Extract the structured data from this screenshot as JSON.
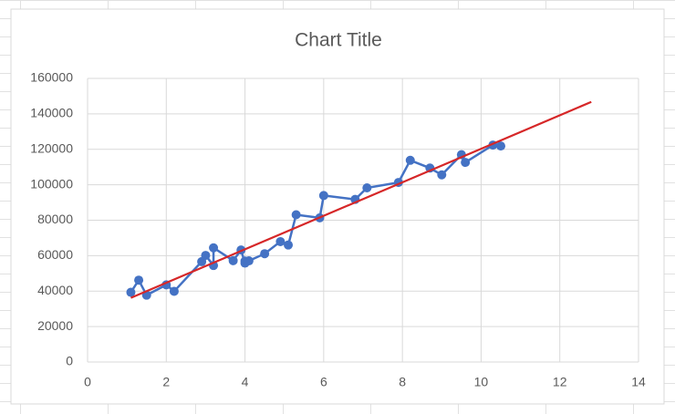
{
  "chart_data": {
    "type": "scatter",
    "title": "Chart Title",
    "x": [
      1.1,
      1.3,
      1.5,
      2.0,
      2.2,
      2.9,
      3.0,
      3.2,
      3.2,
      3.7,
      3.9,
      4.0,
      4.0,
      4.1,
      4.5,
      4.9,
      5.1,
      5.3,
      5.9,
      6.0,
      6.8,
      7.1,
      7.9,
      8.2,
      8.7,
      9.0,
      9.5,
      9.6,
      10.3,
      10.5
    ],
    "series": [
      {
        "color": "#4472c4",
        "values": [
          39343,
          46205,
          37731,
          43525,
          39891,
          56642,
          60150,
          54445,
          64445,
          57189,
          63218,
          55794,
          56957,
          57081,
          61111,
          67938,
          66029,
          83088,
          81363,
          93940,
          91738,
          98273,
          101302,
          113812,
          109431,
          105582,
          116969,
          112635,
          122391,
          121872
        ]
      }
    ],
    "trendline": {
      "color": "#d62728",
      "x": [
        1.1,
        12.8
      ],
      "values": [
        36187,
        146752
      ]
    },
    "xlim": [
      0,
      14
    ],
    "xticks": [
      0,
      2,
      4,
      6,
      8,
      10,
      12,
      14
    ],
    "ylim": [
      0,
      160000
    ],
    "yticks": [
      0,
      20000,
      40000,
      60000,
      80000,
      100000,
      120000,
      140000,
      160000
    ],
    "grid": true
  }
}
